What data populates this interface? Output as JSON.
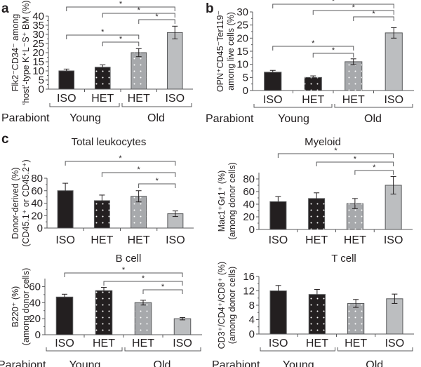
{
  "figure": {
    "row_label": "Parabiont",
    "groups": [
      "Young",
      "Old"
    ]
  },
  "colors": {
    "young_iso": "#231f20",
    "young_het": "#231f20",
    "old_het": "#a7a9ac",
    "old_iso": "#bcbec0",
    "axis": "#58595b",
    "dots": "#ffffff"
  },
  "chart_data": [
    {
      "id": "a",
      "panel_letter": "a",
      "type": "bar",
      "title": "",
      "ylabel_lines": [
        "Flk2⁻CD34⁻ among",
        "‘host’-type K⁺L⁻S⁺ BM (%)"
      ],
      "categories": [
        "ISO",
        "HET",
        "HET",
        "ISO"
      ],
      "category_groups": [
        "Young",
        "Young",
        "Old",
        "Old"
      ],
      "values": [
        10,
        12,
        20,
        31
      ],
      "errors": [
        1,
        1.3,
        2.2,
        3.5
      ],
      "ylim": [
        0,
        40
      ],
      "yticks": [
        0,
        5,
        10,
        15,
        20,
        25,
        30,
        35,
        40
      ],
      "show_group_labels": true,
      "significance": [
        {
          "from": 0,
          "to": 3,
          "label": "*"
        },
        {
          "from": 1,
          "to": 3,
          "label": "*"
        },
        {
          "from": 2,
          "to": 3,
          "label": "*"
        },
        {
          "from": 0,
          "to": 2,
          "label": "*"
        },
        {
          "from": 1,
          "to": 2,
          "label": "*"
        }
      ]
    },
    {
      "id": "b",
      "panel_letter": "b",
      "type": "bar",
      "title": "",
      "ylabel_lines": [
        "OPN⁺CD45⁻Ter119⁻",
        "among live cells (%)"
      ],
      "categories": [
        "ISO",
        "HET",
        "HET",
        "ISO"
      ],
      "category_groups": [
        "Young",
        "Young",
        "Old",
        "Old"
      ],
      "values": [
        7,
        5,
        11,
        22
      ],
      "errors": [
        0.7,
        0.6,
        1.1,
        2
      ],
      "ylim": [
        0,
        30
      ],
      "yticks": [
        0,
        5,
        10,
        15,
        20,
        25,
        30
      ],
      "show_group_labels": true,
      "significance": [
        {
          "from": 0,
          "to": 3,
          "label": "*"
        },
        {
          "from": 1,
          "to": 3,
          "label": "*"
        },
        {
          "from": 2,
          "to": 3,
          "label": "*"
        },
        {
          "from": 0,
          "to": 2,
          "label": "*"
        },
        {
          "from": 1,
          "to": 2,
          "label": "*"
        }
      ]
    },
    {
      "id": "c-total",
      "panel_letter": "c",
      "type": "bar",
      "title": "Total leukocytes",
      "ylabel_lines": [
        "Donor-derived (%)",
        "(CD45.1⁺ or CD45.2⁺)"
      ],
      "categories": [
        "ISO",
        "HET",
        "HET",
        "ISO"
      ],
      "category_groups": [
        "Young",
        "Young",
        "Old",
        "Old"
      ],
      "values": [
        60,
        44,
        51,
        23
      ],
      "errors": [
        12,
        9,
        9,
        4.5
      ],
      "ylim": [
        0,
        80
      ],
      "yticks": [
        0,
        20,
        40,
        60,
        80
      ],
      "show_group_labels": false,
      "significance": [
        {
          "from": 0,
          "to": 3,
          "label": "*"
        },
        {
          "from": 1,
          "to": 3,
          "label": "*"
        },
        {
          "from": 2,
          "to": 3,
          "label": "*"
        }
      ]
    },
    {
      "id": "c-myeloid",
      "panel_letter": "",
      "type": "bar",
      "title": "Myeloid",
      "ylabel_lines": [
        "Mac1⁺Gr1⁺ (%)",
        "(among donor cells)"
      ],
      "categories": [
        "ISO",
        "HET",
        "HET",
        "ISO"
      ],
      "category_groups": [
        "Young",
        "Young",
        "Old",
        "Old"
      ],
      "values": [
        44,
        49,
        41,
        70
      ],
      "errors": [
        8,
        9,
        8,
        14
      ],
      "ylim": [
        0,
        90
      ],
      "yticks": [
        0,
        20,
        40,
        60,
        80
      ],
      "show_group_labels": false,
      "significance": [
        {
          "from": 0,
          "to": 3,
          "label": "*"
        },
        {
          "from": 1,
          "to": 3,
          "label": "*"
        },
        {
          "from": 2,
          "to": 3,
          "label": "*"
        }
      ]
    },
    {
      "id": "c-bcell",
      "panel_letter": "",
      "type": "bar",
      "title": "B cell",
      "ylabel_lines": [
        "B220⁺ (%)",
        "(among donor cells)"
      ],
      "categories": [
        "ISO",
        "HET",
        "HET",
        "ISO"
      ],
      "category_groups": [
        "Young",
        "Young",
        "Old",
        "Old"
      ],
      "values": [
        47,
        55,
        40,
        20
      ],
      "errors": [
        3.5,
        4,
        3,
        1.5
      ],
      "ylim": [
        0,
        70
      ],
      "yticks": [
        0,
        20,
        40,
        60
      ],
      "show_group_labels": true,
      "significance": [
        {
          "from": 0,
          "to": 3,
          "label": "*"
        },
        {
          "from": 1,
          "to": 3,
          "label": "*"
        },
        {
          "from": 2,
          "to": 3,
          "label": "*"
        }
      ]
    },
    {
      "id": "c-tcell",
      "panel_letter": "",
      "type": "bar",
      "title": "T cell",
      "ylabel_lines": [
        "CD3⁺/CD4⁺/CD8⁺ (%)",
        "(among donor cells)"
      ],
      "categories": [
        "ISO",
        "HET",
        "HET",
        "ISO"
      ],
      "category_groups": [
        "Young",
        "Young",
        "Old",
        "Old"
      ],
      "values": [
        12,
        11,
        8.5,
        9.8
      ],
      "errors": [
        1.5,
        1.4,
        1.1,
        1.3
      ],
      "ylim": [
        0,
        16
      ],
      "yticks": [
        0,
        4,
        8,
        12,
        16
      ],
      "show_group_labels": true,
      "significance": []
    }
  ]
}
